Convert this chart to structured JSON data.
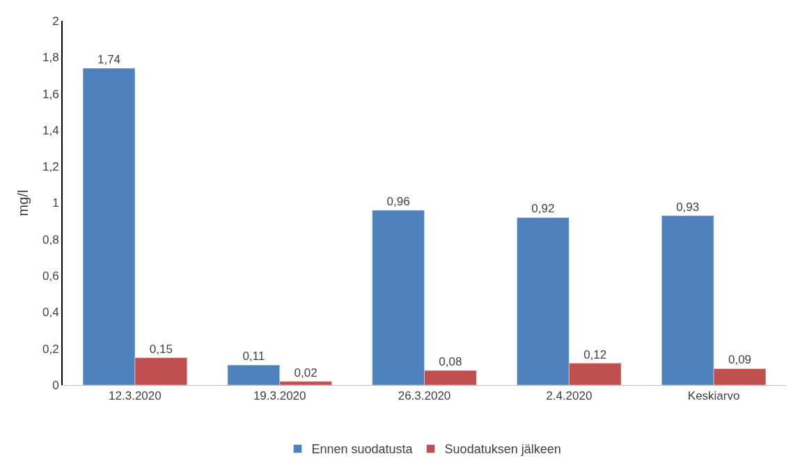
{
  "chart_data": {
    "type": "bar",
    "ylabel": "mg/l",
    "categories": [
      "12.3.2020",
      "19.3.2020",
      "26.3.2020",
      "2.4.2020",
      "Keskiarvo"
    ],
    "series": [
      {
        "name": "Ennen suodatusta",
        "color": "#4f81bd",
        "values": [
          1.74,
          0.11,
          0.96,
          0.92,
          0.93
        ],
        "value_labels": [
          "1,74",
          "0,11",
          "0,96",
          "0,92",
          "0,93"
        ]
      },
      {
        "name": "Suodatuksen jälkeen",
        "color": "#c0504d",
        "values": [
          0.15,
          0.02,
          0.08,
          0.12,
          0.09
        ],
        "value_labels": [
          "0,15",
          "0,02",
          "0,08",
          "0,12",
          "0,09"
        ]
      }
    ],
    "ylim": [
      0,
      2
    ],
    "yticks": [
      0,
      {
        "value": 0.2,
        "label": "0,2"
      },
      {
        "value": 0.4,
        "label": "0,4"
      },
      {
        "value": 0.6,
        "label": "0,6"
      },
      {
        "value": 0.8,
        "label": "0,8"
      },
      1,
      {
        "value": 1.2,
        "label": "1,2"
      },
      {
        "value": 1.4,
        "label": "1,4"
      },
      {
        "value": 1.6,
        "label": "1,6"
      },
      {
        "value": 1.8,
        "label": "1,8"
      },
      2
    ],
    "legend": "bottom"
  }
}
